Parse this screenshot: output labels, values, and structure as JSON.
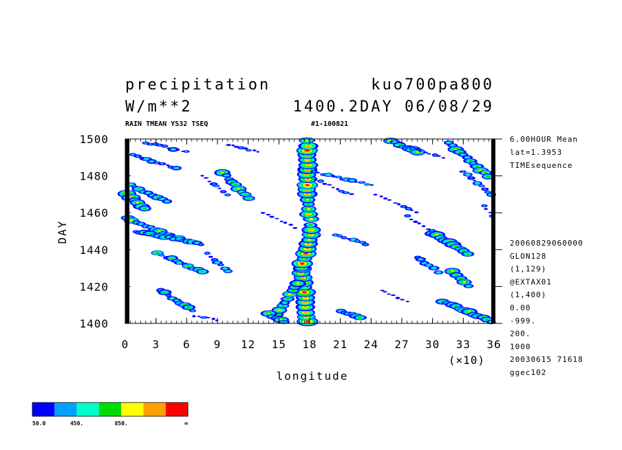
{
  "header": {
    "variable": "precipitation",
    "run": "kuo700pa800",
    "units": "W/m**2",
    "info": "1400.2DAY 06/08/29",
    "subtitle_left": "RAIN TMEAN YS32 TSEQ",
    "subtitle_right": "#1-100821"
  },
  "side_info": {
    "top": [
      "6.00HOUR Mean",
      "lat=1.3953",
      "TIMEsequence"
    ],
    "bottom": [
      "20060829060000",
      "GLON128",
      "(1,129)",
      "@EXTAX01",
      "(1,400)",
      "0.00",
      "-999.",
      "200.",
      "1000",
      "20030615  71618",
      "ggec102"
    ]
  },
  "colorbar": {
    "colors": [
      "#0000ff",
      "#00a0ff",
      "#00ffc8",
      "#00dc00",
      "#ffff00",
      "#ffa000",
      "#ff0000"
    ],
    "labels": [
      "50.0",
      "450.",
      "850.",
      "∞"
    ]
  },
  "chart_data": {
    "type": "heatmap",
    "xlabel": "longitude",
    "ylabel": "DAY",
    "x_multiplier": "(×10)",
    "xlim": [
      0,
      36
    ],
    "ylim": [
      1400,
      1500
    ],
    "x_ticks": [
      "0",
      "3",
      "6",
      "9",
      "12",
      "15",
      "18",
      "21",
      "24",
      "27",
      "30",
      "33",
      "36"
    ],
    "y_ticks": [
      "1400",
      "1420",
      "1440",
      "1460",
      "1480",
      "1500"
    ],
    "streaks": [
      {
        "x0": 17.8,
        "y0": 1401,
        "x1": 17.2,
        "y1": 1430,
        "level": 6
      },
      {
        "x0": 17.2,
        "y0": 1430,
        "x1": 18.2,
        "y1": 1448,
        "level": 6
      },
      {
        "x0": 18.2,
        "y0": 1448,
        "x1": 17.8,
        "y1": 1470,
        "level": 5
      },
      {
        "x0": 17.8,
        "y0": 1470,
        "x1": 17.8,
        "y1": 1499,
        "level": 6
      },
      {
        "x0": 14.6,
        "y0": 1403,
        "x1": 16.8,
        "y1": 1422,
        "level": 4
      },
      {
        "x0": 18.4,
        "y0": 1482,
        "x1": 24.0,
        "y1": 1475,
        "level": 2
      },
      {
        "x0": 18.6,
        "y0": 1478,
        "x1": 22.0,
        "y1": 1470,
        "level": 1
      },
      {
        "x0": 0.2,
        "y0": 1457,
        "x1": 5.5,
        "y1": 1445,
        "level": 4
      },
      {
        "x0": 1.0,
        "y0": 1450,
        "x1": 7.5,
        "y1": 1443,
        "level": 3
      },
      {
        "x0": 3.2,
        "y0": 1438,
        "x1": 7.5,
        "y1": 1428,
        "level": 3
      },
      {
        "x0": 0.5,
        "y0": 1475,
        "x1": 4.0,
        "y1": 1466,
        "level": 3
      },
      {
        "x0": 0.2,
        "y0": 1470,
        "x1": 2.0,
        "y1": 1462,
        "level": 5
      },
      {
        "x0": 0.3,
        "y0": 1492,
        "x1": 5.0,
        "y1": 1484,
        "level": 2
      },
      {
        "x0": 2.0,
        "y0": 1498,
        "x1": 6.0,
        "y1": 1493,
        "level": 2
      },
      {
        "x0": 9.5,
        "y0": 1482,
        "x1": 12.0,
        "y1": 1468,
        "level": 4
      },
      {
        "x0": 7.5,
        "y0": 1480,
        "x1": 10.0,
        "y1": 1470,
        "level": 1
      },
      {
        "x0": 8.0,
        "y0": 1438,
        "x1": 10.0,
        "y1": 1428,
        "level": 2
      },
      {
        "x0": 6.8,
        "y0": 1404,
        "x1": 9.0,
        "y1": 1402,
        "level": 1
      },
      {
        "x0": 3.5,
        "y0": 1418,
        "x1": 6.5,
        "y1": 1407,
        "level": 3
      },
      {
        "x0": 13.5,
        "y0": 1460,
        "x1": 16.5,
        "y1": 1452,
        "level": 1
      },
      {
        "x0": 26.0,
        "y0": 1499,
        "x1": 28.5,
        "y1": 1493,
        "level": 4
      },
      {
        "x0": 28.0,
        "y0": 1495,
        "x1": 31.0,
        "y1": 1490,
        "level": 1
      },
      {
        "x0": 31.5,
        "y0": 1498,
        "x1": 35.5,
        "y1": 1480,
        "level": 4
      },
      {
        "x0": 33.0,
        "y0": 1482,
        "x1": 35.8,
        "y1": 1470,
        "level": 2
      },
      {
        "x0": 30.0,
        "y0": 1449,
        "x1": 33.5,
        "y1": 1438,
        "level": 4
      },
      {
        "x0": 28.5,
        "y0": 1436,
        "x1": 30.5,
        "y1": 1428,
        "level": 3
      },
      {
        "x0": 32.0,
        "y0": 1428,
        "x1": 33.5,
        "y1": 1420,
        "level": 4
      },
      {
        "x0": 31.0,
        "y0": 1412,
        "x1": 35.8,
        "y1": 1401,
        "level": 4
      },
      {
        "x0": 20.5,
        "y0": 1448,
        "x1": 23.5,
        "y1": 1443,
        "level": 2
      },
      {
        "x0": 21.0,
        "y0": 1407,
        "x1": 23.0,
        "y1": 1403,
        "level": 3
      },
      {
        "x0": 24.5,
        "y0": 1470,
        "x1": 28.5,
        "y1": 1460,
        "level": 1
      },
      {
        "x0": 27.5,
        "y0": 1458,
        "x1": 30.0,
        "y1": 1450,
        "level": 1
      },
      {
        "x0": 14.0,
        "y0": 1405,
        "x1": 15.5,
        "y1": 1401,
        "level": 4
      },
      {
        "x0": 35.0,
        "y0": 1464,
        "x1": 35.9,
        "y1": 1458,
        "level": 1
      },
      {
        "x0": 25.0,
        "y0": 1418,
        "x1": 27.5,
        "y1": 1412,
        "level": 1
      },
      {
        "x0": 10.0,
        "y0": 1497,
        "x1": 13.0,
        "y1": 1493,
        "level": 1
      }
    ]
  }
}
